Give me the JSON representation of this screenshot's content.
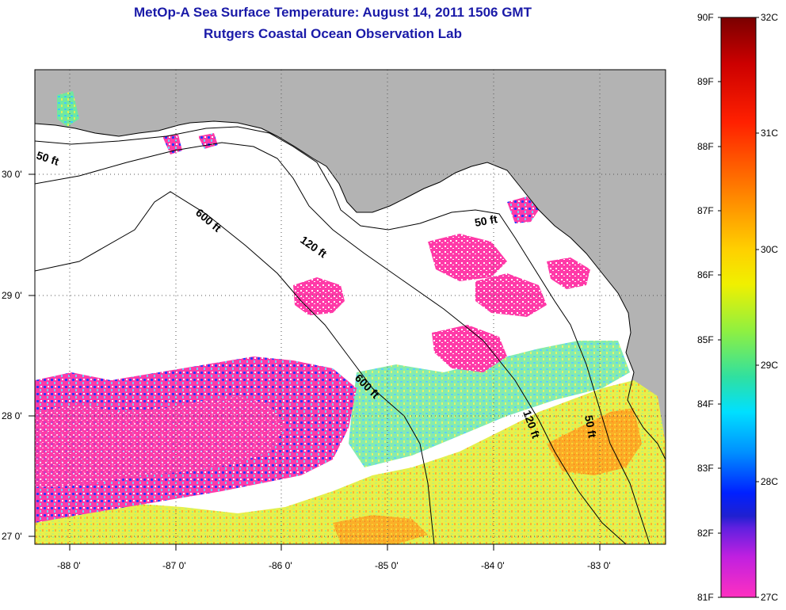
{
  "title": {
    "line1": "MetOp-A Sea Surface Temperature:  August 14, 2011 1506 GMT",
    "line2": "Rutgers Coastal Ocean Observation Lab"
  },
  "map": {
    "x_ticks": [
      "-88 0'",
      "-87 0'",
      "-86 0'",
      "-85 0'",
      "-84 0'",
      "-83 0'"
    ],
    "y_ticks": [
      "30 0'",
      "29 0'",
      "28 0'",
      "27 0'"
    ],
    "contours": [
      {
        "label": "50 ft"
      },
      {
        "label": "600 ft"
      },
      {
        "label": "120 ft"
      },
      {
        "label": "50 ft"
      },
      {
        "label": "600 ft"
      },
      {
        "label": "120 ft"
      },
      {
        "label": "50 ft"
      }
    ],
    "colors": {
      "land": "#b3b3b3",
      "no_data": "#ffffff",
      "cool": "#ff3aa8",
      "warm": "#e6f050"
    }
  },
  "colorbar": {
    "f_labels": [
      "90F",
      "89F",
      "88F",
      "87F",
      "86F",
      "85F",
      "84F",
      "83F",
      "82F",
      "81F"
    ],
    "c_labels": [
      "32C",
      "31C",
      "30C",
      "29C",
      "28C",
      "27C"
    ]
  }
}
